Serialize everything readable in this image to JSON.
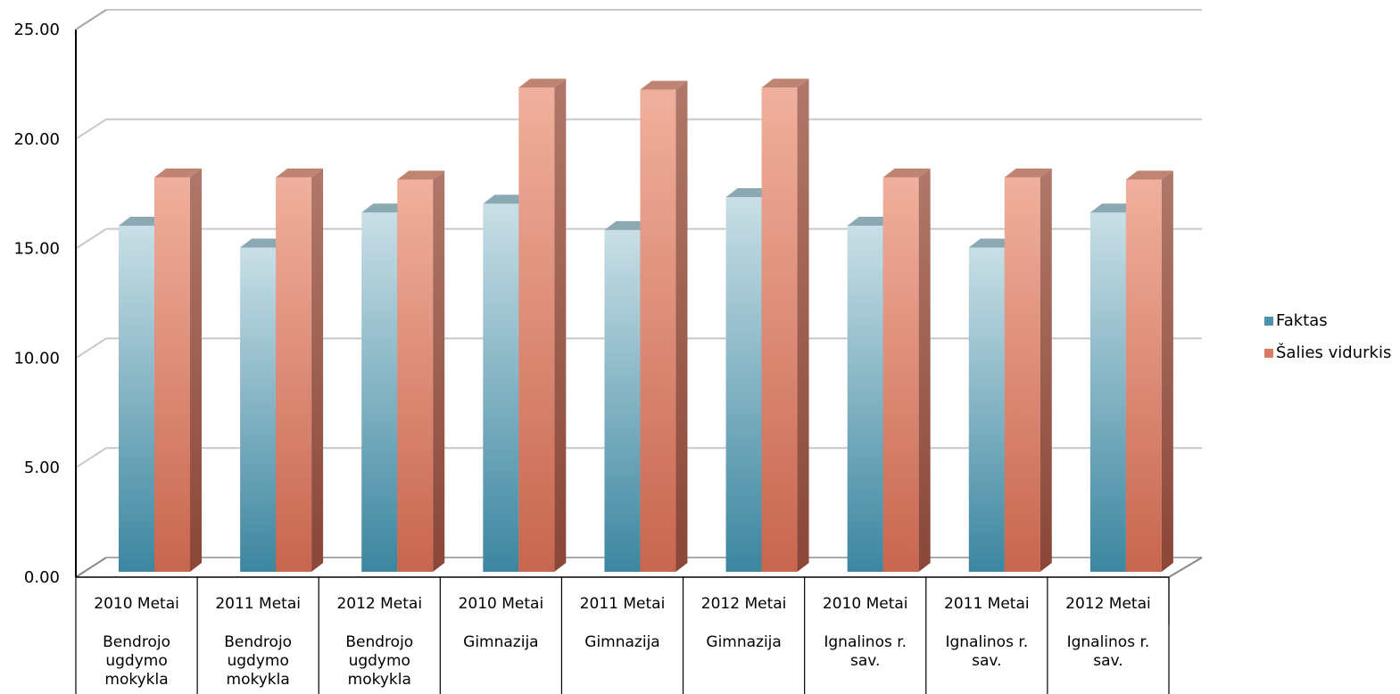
{
  "chart_data": {
    "type": "bar",
    "title": "",
    "xlabel": "",
    "ylabel": "",
    "ylim": [
      0,
      25
    ],
    "y_ticks": [
      "0.00",
      "5.00",
      "10.00",
      "15.00",
      "20.00",
      "25.00"
    ],
    "grid": true,
    "legend_position": "right",
    "categories": [
      {
        "year": "2010 Metai",
        "group": "Bendrojo ugdymo mokykla"
      },
      {
        "year": "2011 Metai",
        "group": "Bendrojo ugdymo mokykla"
      },
      {
        "year": "2012 Metai",
        "group": "Bendrojo ugdymo mokykla"
      },
      {
        "year": "2010 Metai",
        "group": "Gimnazija"
      },
      {
        "year": "2011 Metai",
        "group": "Gimnazija"
      },
      {
        "year": "2012 Metai",
        "group": "Gimnazija"
      },
      {
        "year": "2010 Metai",
        "group": "Ignalinos r. sav."
      },
      {
        "year": "2011 Metai",
        "group": "Ignalinos r. sav."
      },
      {
        "year": "2012 Metai",
        "group": "Ignalinos r. sav."
      }
    ],
    "series": [
      {
        "name": "Faktas",
        "color": "#4a93ab",
        "values": [
          15.8,
          14.8,
          16.4,
          16.8,
          15.6,
          17.1,
          15.8,
          14.8,
          16.4
        ]
      },
      {
        "name": "Šalies vidurkis",
        "color": "#d97a63",
        "values": [
          18.0,
          18.0,
          17.9,
          22.1,
          22.0,
          22.1,
          18.0,
          18.0,
          17.9
        ]
      }
    ]
  }
}
